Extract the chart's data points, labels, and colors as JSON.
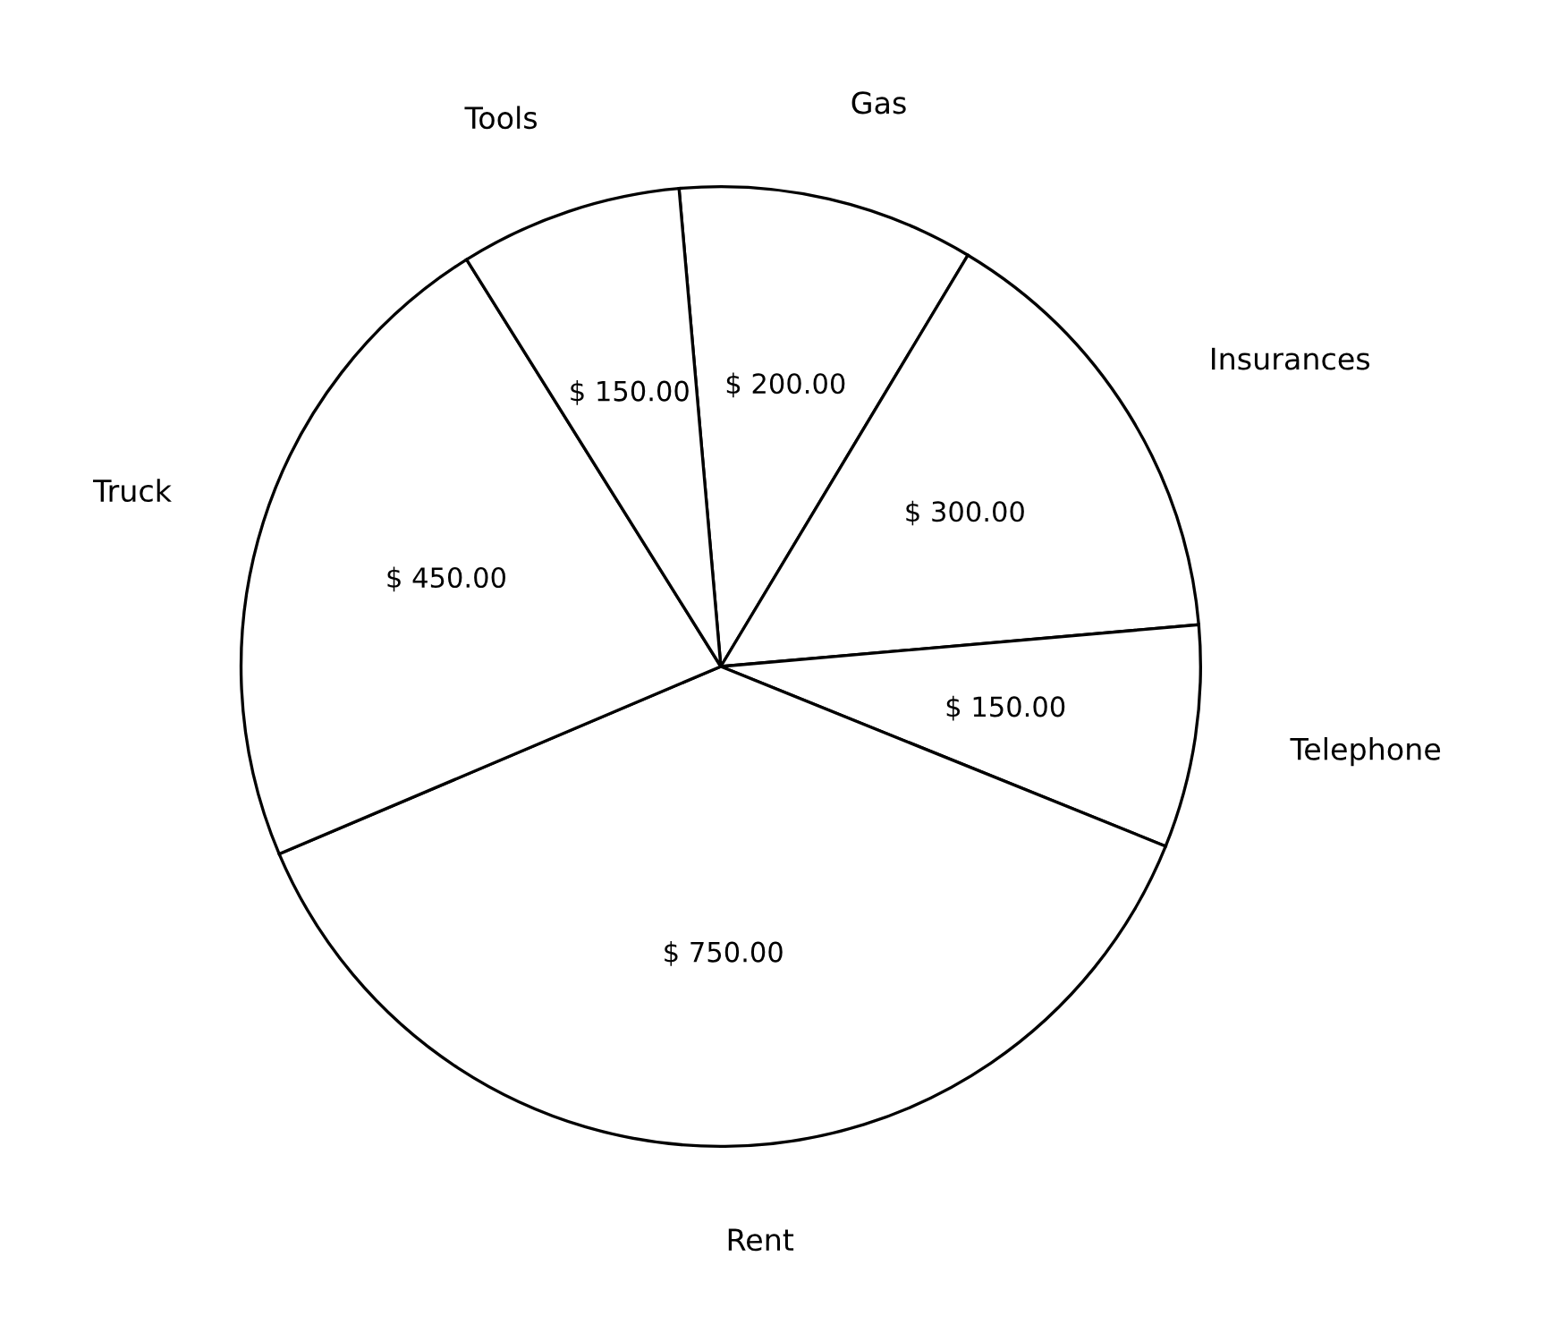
{
  "chart_data": {
    "type": "pie",
    "categories": [
      "Gas",
      "Insurances",
      "Telephone",
      "Rent",
      "Truck",
      "Tools"
    ],
    "values": [
      200,
      300,
      150,
      750,
      450,
      150
    ],
    "colors": [
      "#ffffff",
      "#ffffff",
      "#ffffff",
      "#ffffff",
      "#ffffff",
      "#ffffff"
    ],
    "value_labels": [
      "$ 200.00",
      "$ 300.00",
      "$ 150.00",
      "$ 750.00",
      "$ 450.00",
      "$ 150.00"
    ],
    "legend": false
  }
}
